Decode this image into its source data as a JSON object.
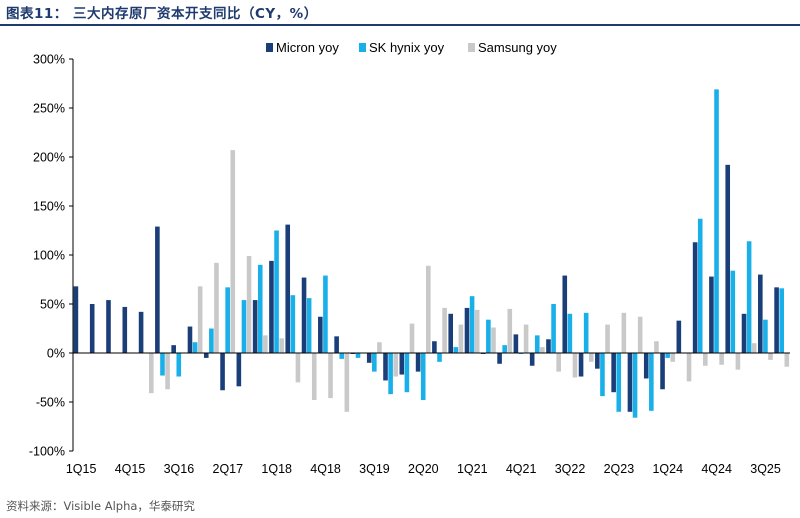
{
  "header": {
    "title": "图表11： 三大内存原厂资本开支同比（CY，%）"
  },
  "footer": {
    "source": "资料来源：Visible Alpha，华泰研究"
  },
  "colors": {
    "micron": "#1a3e78",
    "skhynix": "#19b0ea",
    "samsung": "#c9c9c9",
    "axis": "#000000",
    "title": "#1f3a6e"
  },
  "chart_data": {
    "type": "bar",
    "title": "三大内存原厂资本开支同比（CY，%）",
    "xlabel": "",
    "ylabel": "",
    "ylim": [
      -100,
      300
    ],
    "yticks": [
      -100,
      -50,
      0,
      50,
      100,
      150,
      200,
      250,
      300
    ],
    "ytick_labels": [
      "-100%",
      "-50%",
      "0%",
      "50%",
      "100%",
      "150%",
      "200%",
      "250%",
      "300%"
    ],
    "legend_position": "top-right",
    "grid": false,
    "categories": [
      "1Q15",
      "2Q15",
      "3Q15",
      "4Q15",
      "1Q16",
      "2Q16",
      "3Q16",
      "4Q16",
      "1Q17",
      "2Q17",
      "3Q17",
      "4Q17",
      "1Q18",
      "2Q18",
      "3Q18",
      "4Q18",
      "1Q19",
      "2Q19",
      "3Q19",
      "4Q19",
      "1Q20",
      "2Q20",
      "3Q20",
      "4Q20",
      "1Q21",
      "2Q21",
      "3Q21",
      "4Q21",
      "1Q22",
      "2Q22",
      "3Q22",
      "4Q22",
      "1Q23",
      "2Q23",
      "3Q23",
      "4Q23",
      "1Q24",
      "2Q24",
      "3Q24",
      "4Q24",
      "1Q25",
      "2Q25",
      "3Q25",
      "4Q25"
    ],
    "category_labels_shown": [
      "1Q15",
      "4Q15",
      "3Q16",
      "2Q17",
      "1Q18",
      "4Q18",
      "3Q19",
      "2Q20",
      "1Q21",
      "4Q21",
      "3Q22",
      "2Q23",
      "1Q24",
      "4Q24",
      "3Q25"
    ],
    "series": [
      {
        "name": "Micron yoy",
        "values": [
          68,
          50,
          54,
          47,
          42,
          129,
          8,
          27,
          -5,
          -38,
          -34,
          54,
          94,
          131,
          77,
          37,
          17,
          -1,
          -10,
          -28,
          -22,
          -19,
          12,
          40,
          46,
          -1,
          -11,
          19,
          -13,
          14,
          79,
          -24,
          -16,
          -40,
          -60,
          -26,
          -37,
          33,
          113,
          78,
          192,
          40,
          80,
          67
        ]
      },
      {
        "name": "SK hynix yoy",
        "values": [
          null,
          null,
          null,
          null,
          null,
          -23,
          -24,
          11,
          25,
          67,
          54,
          90,
          125,
          59,
          56,
          79,
          -6,
          -5,
          -19,
          -42,
          -40,
          -48,
          -9,
          6,
          58,
          34,
          8,
          -1,
          18,
          50,
          40,
          41,
          -44,
          -60,
          -66,
          -59,
          -5,
          null,
          137,
          269,
          84,
          114,
          34,
          66
        ]
      },
      {
        "name": "Samsung yoy",
        "values": [
          null,
          null,
          null,
          null,
          -41,
          -37,
          null,
          68,
          92,
          207,
          99,
          18,
          15,
          -30,
          -48,
          -46,
          -60,
          null,
          11,
          -24,
          30,
          89,
          46,
          29,
          44,
          26,
          45,
          29,
          6,
          -19,
          -25,
          -9,
          29,
          41,
          37,
          12,
          -9,
          -29,
          -13,
          -12,
          -17,
          10,
          -7,
          -14
        ]
      }
    ]
  }
}
